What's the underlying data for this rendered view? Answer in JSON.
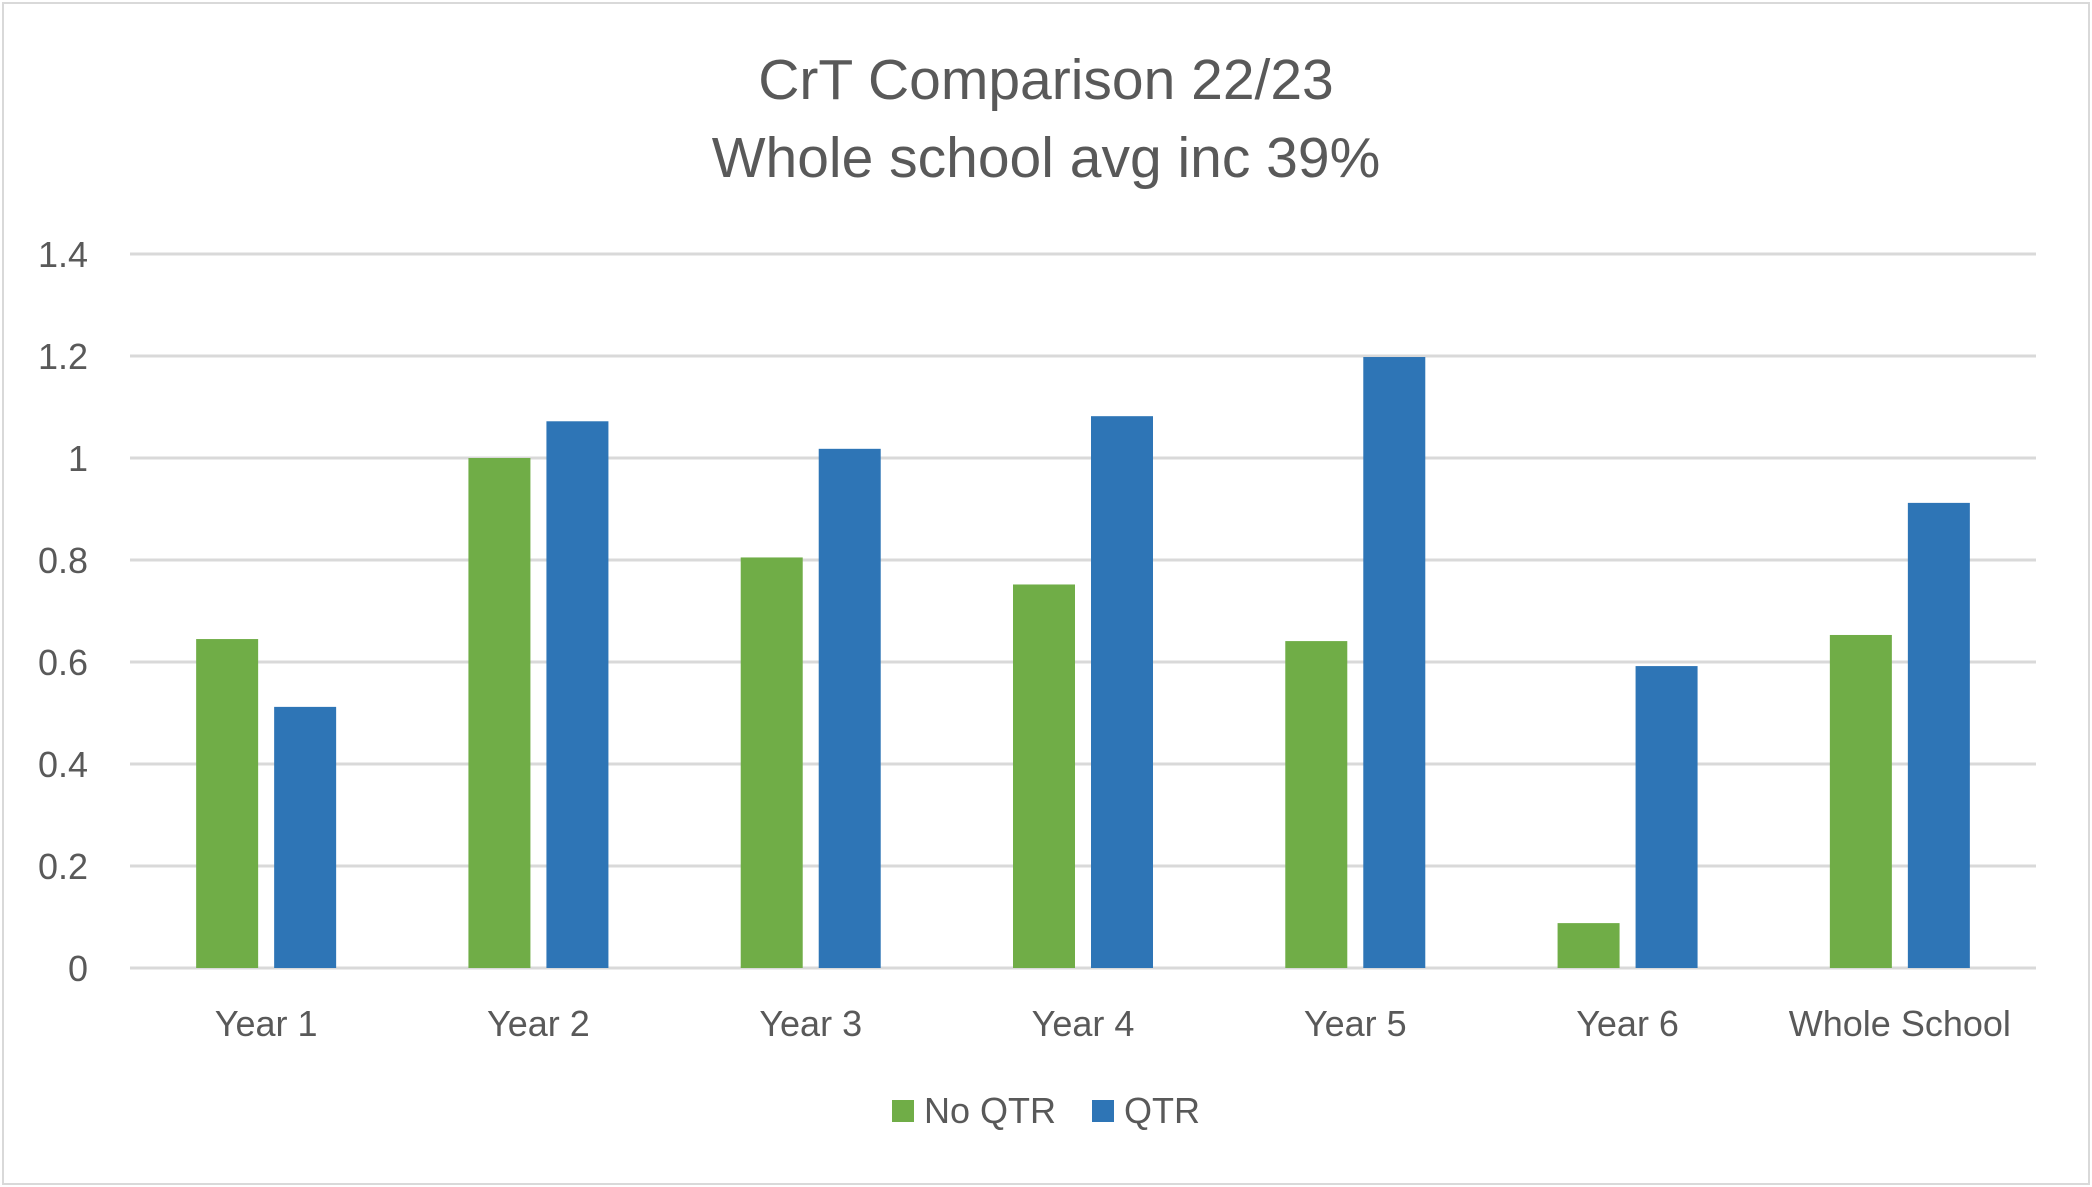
{
  "chart_data": {
    "type": "bar",
    "title": "CrT Comparison 22/23",
    "subtitle": "Whole school avg inc 39%",
    "categories": [
      "Year 1",
      "Year 2",
      "Year 3",
      "Year 4",
      "Year 5",
      "Year 6",
      "Whole School"
    ],
    "series": [
      {
        "name": "No QTR",
        "color": "#70ad47",
        "values": [
          0.645,
          1.0,
          0.805,
          0.752,
          0.641,
          0.088,
          0.653
        ]
      },
      {
        "name": "QTR",
        "color": "#2e75b6",
        "values": [
          0.512,
          1.072,
          1.018,
          1.082,
          1.198,
          0.592,
          0.912
        ]
      }
    ],
    "ylim": [
      0,
      1.4
    ],
    "yticks": [
      "0",
      "0.2",
      "0.4",
      "0.6",
      "0.8",
      "1",
      "1.2",
      "1.4"
    ],
    "ytick_values": [
      0,
      0.2,
      0.4,
      0.6,
      0.8,
      1.0,
      1.2,
      1.4
    ],
    "grid": true,
    "gridColor": "#d9d9d9",
    "legend_position": "bottom"
  }
}
